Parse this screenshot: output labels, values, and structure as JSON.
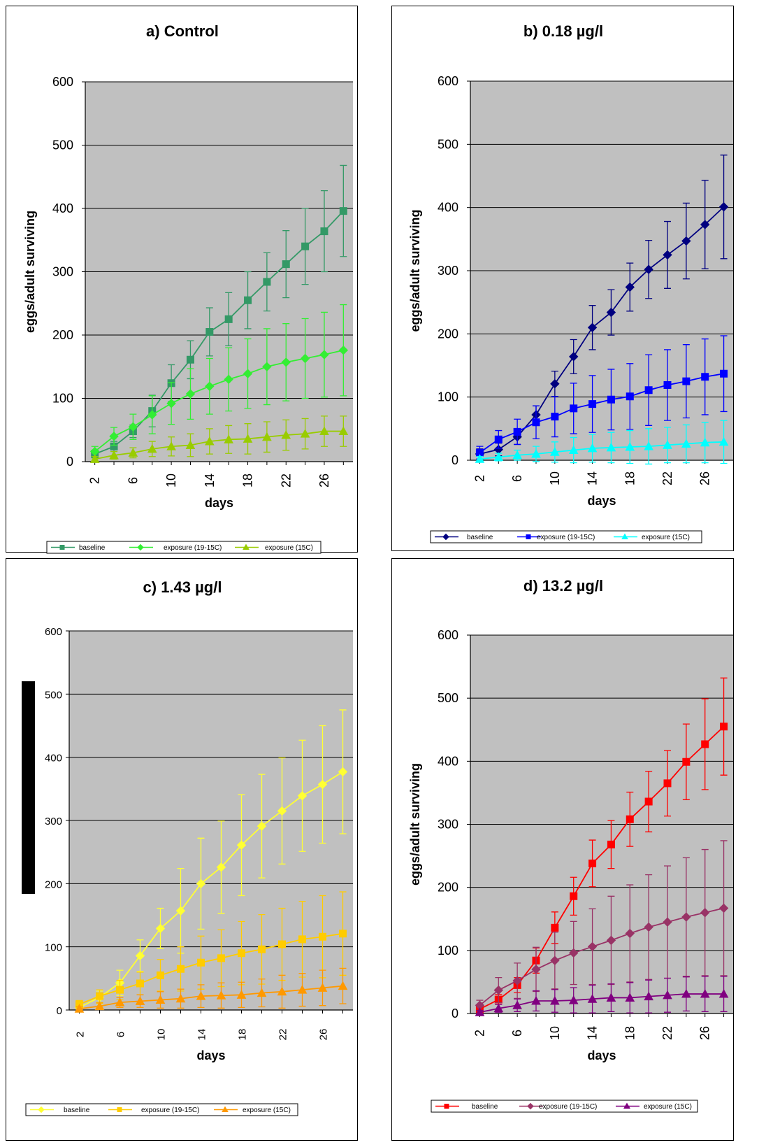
{
  "chart_data": [
    {
      "type": "line",
      "title": "a)  Control",
      "xlabel": "days",
      "ylabel": "eggs/adult surviving",
      "ylim": [
        0,
        600
      ],
      "yticks": [
        0,
        100,
        200,
        300,
        400,
        500,
        600
      ],
      "xticks": [
        2,
        6,
        10,
        14,
        18,
        22,
        26
      ],
      "x": [
        2,
        4,
        6,
        8,
        10,
        12,
        14,
        16,
        18,
        20,
        22,
        24,
        26,
        28
      ],
      "grid": true,
      "legend_position": "bottom",
      "series": [
        {
          "name": "baseline",
          "color": "#339966",
          "marker": "square",
          "values": [
            12,
            24,
            48,
            80,
            124,
            161,
            205,
            225,
            255,
            284,
            312,
            340,
            364,
            396
          ],
          "err": [
            6,
            8,
            10,
            25,
            29,
            30,
            38,
            42,
            45,
            46,
            53,
            60,
            64,
            72
          ]
        },
        {
          "name": "exposure (19-15C)",
          "color": "#33ee33",
          "marker": "diamond",
          "values": [
            16,
            40,
            55,
            74,
            92,
            107,
            119,
            130,
            139,
            150,
            157,
            163,
            169,
            176
          ],
          "err": [
            8,
            14,
            20,
            30,
            33,
            40,
            44,
            50,
            55,
            60,
            61,
            63,
            67,
            72
          ]
        },
        {
          "name": "exposure (15C)",
          "color": "#99cc00",
          "marker": "triangle",
          "values": [
            4,
            10,
            14,
            20,
            24,
            26,
            32,
            35,
            36,
            39,
            42,
            44,
            48,
            48
          ],
          "err": [
            4,
            6,
            8,
            12,
            15,
            18,
            20,
            22,
            24,
            24,
            24,
            24,
            24,
            24
          ]
        }
      ]
    },
    {
      "type": "line",
      "title": "b)  0.18 µg/l",
      "xlabel": "days",
      "ylabel": "eggs/adult surviving",
      "ylim": [
        0,
        600
      ],
      "yticks": [
        0,
        100,
        200,
        300,
        400,
        500,
        600
      ],
      "xticks": [
        2,
        6,
        10,
        14,
        18,
        22,
        26
      ],
      "x": [
        2,
        4,
        6,
        8,
        10,
        12,
        14,
        16,
        18,
        20,
        22,
        24,
        26,
        28
      ],
      "grid": true,
      "legend_position": "bottom",
      "series": [
        {
          "name": "baseline",
          "color": "#000080",
          "marker": "diamond",
          "values": [
            10,
            17,
            37,
            72,
            121,
            164,
            210,
            234,
            274,
            302,
            325,
            347,
            373,
            401
          ],
          "err": [
            8,
            10,
            12,
            14,
            20,
            27,
            35,
            36,
            38,
            46,
            53,
            60,
            70,
            82
          ]
        },
        {
          "name": "exposure (19-15C)",
          "color": "#0000ff",
          "marker": "square",
          "values": [
            12,
            33,
            45,
            60,
            69,
            82,
            89,
            96,
            101,
            111,
            119,
            125,
            132,
            137
          ],
          "err": [
            10,
            14,
            20,
            26,
            32,
            40,
            45,
            48,
            52,
            56,
            56,
            58,
            60,
            60
          ]
        },
        {
          "name": "exposure (15C)",
          "color": "#00ffff",
          "marker": "triangle",
          "values": [
            2,
            5,
            8,
            10,
            13,
            16,
            19,
            20,
            21,
            22,
            24,
            26,
            28,
            29
          ],
          "err": [
            4,
            6,
            8,
            12,
            16,
            20,
            22,
            24,
            26,
            28,
            28,
            30,
            32,
            34
          ]
        }
      ]
    },
    {
      "type": "line",
      "title": "c)  1.43 µg/l",
      "xlabel": "days",
      "ylabel": "",
      "ylim": [
        0,
        600
      ],
      "yticks": [
        0,
        100,
        200,
        300,
        400,
        500,
        600
      ],
      "xticks": [
        2,
        6,
        10,
        14,
        18,
        22,
        26
      ],
      "x": [
        2,
        4,
        6,
        8,
        10,
        12,
        14,
        16,
        18,
        20,
        22,
        24,
        26,
        28
      ],
      "grid": true,
      "legend_position": "bottom",
      "series": [
        {
          "name": "baseline",
          "color": "#ffff33",
          "marker": "diamond",
          "values": [
            4,
            20,
            43,
            86,
            129,
            157,
            200,
            226,
            261,
            291,
            315,
            339,
            357,
            377
          ],
          "err": [
            4,
            10,
            20,
            25,
            32,
            67,
            72,
            73,
            80,
            82,
            84,
            88,
            93,
            98
          ]
        },
        {
          "name": "exposure (19-15C)",
          "color": "#ffcc00",
          "marker": "square",
          "values": [
            9,
            22,
            32,
            42,
            55,
            65,
            75,
            82,
            90,
            96,
            104,
            112,
            116,
            121
          ],
          "err": [
            6,
            10,
            15,
            18,
            25,
            35,
            42,
            45,
            50,
            55,
            57,
            60,
            65,
            66
          ]
        },
        {
          "name": "exposure (15C)",
          "color": "#ff9900",
          "marker": "triangle",
          "values": [
            2,
            6,
            12,
            14,
            16,
            18,
            22,
            23,
            24,
            27,
            29,
            32,
            35,
            38
          ],
          "err": [
            3,
            5,
            8,
            10,
            13,
            15,
            18,
            20,
            20,
            22,
            26,
            26,
            28,
            28
          ]
        }
      ]
    },
    {
      "type": "line",
      "title": "d)  13.2 µg/l",
      "xlabel": "days",
      "ylabel": "eggs/adult surviving",
      "ylim": [
        0,
        600
      ],
      "yticks": [
        0,
        100,
        200,
        300,
        400,
        500,
        600
      ],
      "xticks": [
        2,
        6,
        10,
        14,
        18,
        22,
        26
      ],
      "x": [
        2,
        4,
        6,
        8,
        10,
        12,
        14,
        16,
        18,
        20,
        22,
        24,
        26,
        28
      ],
      "grid": true,
      "legend_position": "bottom",
      "series": [
        {
          "name": "baseline",
          "color": "#ff0000",
          "marker": "square",
          "values": [
            7,
            22,
            45,
            84,
            136,
            186,
            238,
            268,
            308,
            336,
            365,
            399,
            427,
            455
          ],
          "err": [
            6,
            8,
            12,
            20,
            25,
            30,
            37,
            38,
            43,
            48,
            52,
            60,
            72,
            77
          ]
        },
        {
          "name": "exposure (19-15C)",
          "color": "#993366",
          "marker": "diamond",
          "values": [
            13,
            37,
            52,
            70,
            84,
            96,
            106,
            116,
            127,
            137,
            145,
            153,
            160,
            167
          ],
          "err": [
            8,
            20,
            28,
            35,
            45,
            50,
            60,
            70,
            77,
            83,
            89,
            94,
            100,
            107
          ]
        },
        {
          "name": "exposure (15C)",
          "color": "#800080",
          "marker": "triangle",
          "values": [
            2,
            8,
            13,
            20,
            20,
            21,
            23,
            25,
            25,
            27,
            29,
            31,
            31,
            31
          ],
          "err": [
            3,
            6,
            10,
            16,
            18,
            20,
            22,
            22,
            24,
            26,
            27,
            27,
            28,
            28
          ]
        }
      ]
    }
  ]
}
